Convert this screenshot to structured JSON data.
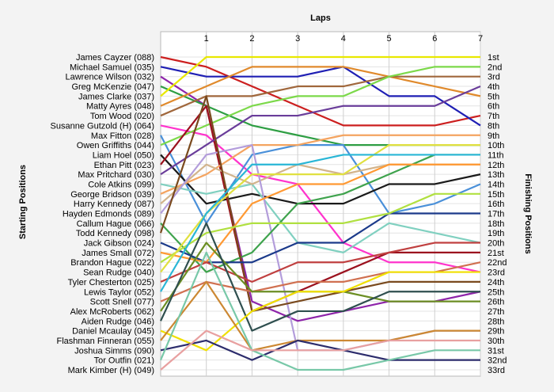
{
  "chart_data": {
    "type": "line",
    "title": "",
    "xlabel": "Laps",
    "ylabel_left": "Starting Positions",
    "ylabel_right": "Finishing Positions",
    "x_ticks": [
      "1",
      "2",
      "3",
      "4",
      "5",
      "6",
      "7"
    ],
    "xlim": [
      0,
      7
    ],
    "ylim": [
      1,
      33
    ],
    "grid": true,
    "finish_labels": [
      "1st",
      "2nd",
      "3rd",
      "4th",
      "5th",
      "6th",
      "7th",
      "8th",
      "9th",
      "10th",
      "11th",
      "12th",
      "13th",
      "14th",
      "15th",
      "16th",
      "17th",
      "18th",
      "19th",
      "20th",
      "21st",
      "22nd",
      "23rd",
      "24th",
      "25th",
      "26th",
      "27th",
      "28th",
      "29th",
      "30th",
      "31st",
      "32nd",
      "33rd"
    ],
    "series": [
      {
        "name": "James Cayzer (088)",
        "color": "#cc1f1f",
        "values": [
          1,
          2,
          4,
          6,
          8,
          8,
          8,
          7
        ]
      },
      {
        "name": "Michael Samuel (035)",
        "color": "#1f1fb4",
        "values": [
          2,
          3,
          3,
          3,
          2,
          5,
          5,
          8
        ]
      },
      {
        "name": "Lawrence Wilson (032)",
        "color": "#8e24aa",
        "values": [
          3,
          6,
          26,
          28,
          27,
          26,
          26,
          25
        ]
      },
      {
        "name": "Greg McKenzie (047)",
        "color": "#2e9e43",
        "values": [
          4,
          6,
          8,
          9,
          10,
          10,
          10,
          10
        ]
      },
      {
        "name": "James Clarke (037)",
        "color": "#e8e800",
        "values": [
          5,
          1,
          1,
          1,
          1,
          1,
          1,
          1
        ]
      },
      {
        "name": "Matty Ayres (048)",
        "color": "#e08a2c",
        "values": [
          6,
          4,
          2,
          2,
          2,
          3,
          4,
          5
        ]
      },
      {
        "name": "Tom Wood (020)",
        "color": "#a0673c",
        "values": [
          7,
          5,
          5,
          4,
          4,
          3,
          3,
          3
        ]
      },
      {
        "name": "Susanne Gutzold (H) (064)",
        "color": "#ff33cc",
        "values": [
          8,
          9,
          13,
          14,
          20,
          22,
          22,
          23
        ]
      },
      {
        "name": "Max Fitton (028)",
        "color": "#4a90d9",
        "values": [
          9,
          18,
          11,
          10,
          10,
          17,
          16,
          14
        ]
      },
      {
        "name": "Owen Griffiths (044)",
        "color": "#7cd94a",
        "values": [
          10,
          8,
          6,
          5,
          5,
          3,
          2,
          2
        ]
      },
      {
        "name": "Liam Hoel (050)",
        "color": "#1a1a1a",
        "values": [
          11,
          16,
          15,
          16,
          16,
          14,
          14,
          13
        ]
      },
      {
        "name": "Ethan Pitt (023)",
        "color": "#9b111e",
        "values": [
          12,
          6,
          27,
          25,
          23,
          21,
          21,
          21
        ]
      },
      {
        "name": "Max Pritchard (030)",
        "color": "#6a3d9a",
        "values": [
          13,
          10,
          7,
          7,
          6,
          6,
          6,
          4
        ]
      },
      {
        "name": "Cole Atkins (099)",
        "color": "#80d0c0",
        "values": [
          14,
          15,
          14,
          20,
          21,
          18,
          19,
          20
        ]
      },
      {
        "name": "George Bridson (039)",
        "color": "#f4a460",
        "values": [
          15,
          13,
          10,
          10,
          9,
          9,
          9,
          9
        ]
      },
      {
        "name": "Harry Kennedy (087)",
        "color": "#d2b48c",
        "values": [
          16,
          12,
          14,
          12,
          13,
          12,
          12,
          12
        ]
      },
      {
        "name": "Hayden Edmonds (089)",
        "color": "#b39ddb",
        "values": [
          17,
          11,
          10,
          31,
          31,
          30,
          29,
          29
        ]
      },
      {
        "name": "Callum Hague (066)",
        "color": "#3fa34d",
        "values": [
          18,
          23,
          21,
          16,
          15,
          13,
          11,
          11
        ]
      },
      {
        "name": "Todd Kennedy (098)",
        "color": "#7a4a1e",
        "values": [
          19,
          5,
          27,
          26,
          25,
          24,
          24,
          24
        ]
      },
      {
        "name": "Jack Gibson (024)",
        "color": "#1b3a8a",
        "values": [
          20,
          22,
          22,
          20,
          20,
          17,
          17,
          17
        ]
      },
      {
        "name": "James Small (072)",
        "color": "#ff9933",
        "values": [
          21,
          22,
          16,
          14,
          14,
          12,
          12,
          12
        ]
      },
      {
        "name": "Brandon Hague (022)",
        "color": "#b0e040",
        "values": [
          22,
          19,
          18,
          18,
          18,
          17,
          15,
          15
        ]
      },
      {
        "name": "Sean Rudge (040)",
        "color": "#e0e040",
        "values": [
          23,
          17,
          13,
          13,
          13,
          10,
          10,
          10
        ]
      },
      {
        "name": "Tyler Chesterton (025)",
        "color": "#c04040",
        "values": [
          24,
          22,
          24,
          22,
          22,
          21,
          20,
          20
        ]
      },
      {
        "name": "Lewis Taylor (052)",
        "color": "#29b6d6",
        "values": [
          25,
          17,
          12,
          12,
          11,
          11,
          11,
          11
        ]
      },
      {
        "name": "Scott Snell (077)",
        "color": "#d07050",
        "values": [
          26,
          24,
          25,
          24,
          24,
          23,
          23,
          22
        ]
      },
      {
        "name": "Alex McRoberts (062)",
        "color": "#6b8e23",
        "values": [
          27,
          20,
          25,
          25,
          25,
          26,
          26,
          26
        ]
      },
      {
        "name": "Aiden Rudge (046)",
        "color": "#2f4f4f",
        "values": [
          28,
          18,
          29,
          27,
          27,
          25,
          25,
          25
        ]
      },
      {
        "name": "Daniel Mcaulay (045)",
        "color": "#f0e000",
        "values": [
          29,
          31,
          27,
          25,
          25,
          23,
          23,
          23
        ]
      },
      {
        "name": "Flashman Finneran (055)",
        "color": "#cc8833",
        "values": [
          30,
          24,
          31,
          30,
          30,
          30,
          29,
          29
        ]
      },
      {
        "name": "Joshua Simms (090)",
        "color": "#2c2c6c",
        "values": [
          31,
          30,
          32,
          30,
          31,
          32,
          32,
          32
        ]
      },
      {
        "name": "Tor Outfin (021)",
        "color": "#78c8a8",
        "values": [
          32,
          21,
          31,
          33,
          33,
          32,
          31,
          31
        ]
      },
      {
        "name": "Mark Kimber (H) (049)",
        "color": "#e8a0a0",
        "values": [
          33,
          29,
          31,
          31,
          31,
          30,
          30,
          30
        ]
      }
    ]
  }
}
